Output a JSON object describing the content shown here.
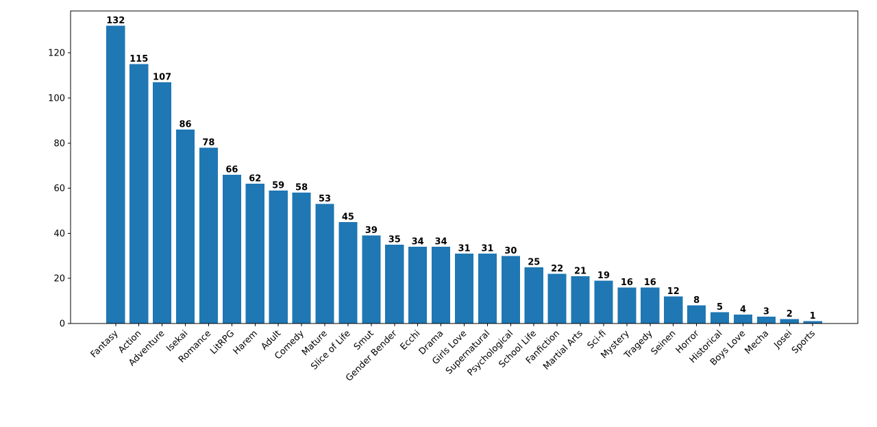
{
  "chart_data": {
    "type": "bar",
    "categories": [
      "Fantasy",
      "Action",
      "Adventure",
      "Isekai",
      "Romance",
      "LitRPG",
      "Harem",
      "Adult",
      "Comedy",
      "Mature",
      "Slice of Life",
      "Smut",
      "Gender Bender",
      "Ecchi",
      "Drama",
      "Girls Love",
      "Supernatural",
      "Psychological",
      "School Life",
      "Fanfiction",
      "Martial Arts",
      "Sci-fi",
      "Mystery",
      "Tragedy",
      "Seinen",
      "Horror",
      "Historical",
      "Boys Love",
      "Mecha",
      "Josei",
      "Sports"
    ],
    "values": [
      132,
      115,
      107,
      86,
      78,
      66,
      62,
      59,
      58,
      53,
      45,
      39,
      35,
      34,
      34,
      31,
      31,
      30,
      25,
      22,
      21,
      19,
      16,
      16,
      12,
      8,
      5,
      4,
      3,
      2,
      1
    ],
    "title": "",
    "xlabel": "",
    "ylabel": "",
    "ylim": [
      0,
      138.6
    ],
    "yticks": [
      0,
      20,
      40,
      60,
      80,
      100,
      120
    ],
    "grid": false,
    "legend": null,
    "bar_color": "#1f77b4",
    "axis_color": "#000000",
    "value_label_color": "#000000",
    "x_tick_rotation": 45,
    "bar_width_ratio": 0.8,
    "x_margin": 0.05,
    "value_labels_shown": true
  }
}
